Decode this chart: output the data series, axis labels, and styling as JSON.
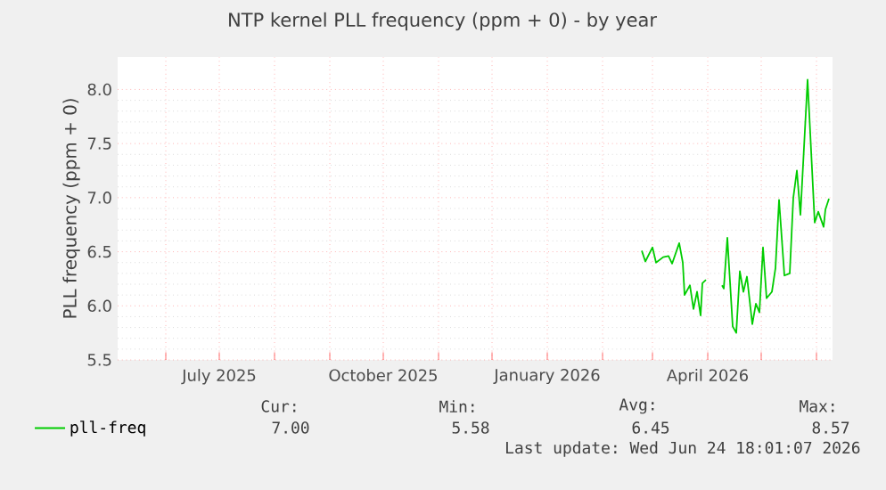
{
  "chart_data": {
    "type": "line",
    "title": "NTP kernel PLL frequency (ppm + 0) - by year",
    "ylabel": "PLL frequency (ppm + 0)",
    "x": [
      "2026-02-23",
      "2026-02-25",
      "2026-03-01",
      "2026-03-03",
      "2026-03-07",
      "2026-03-10",
      "2026-03-12",
      "2026-03-16",
      "2026-03-18",
      "2026-03-19",
      "2026-03-22",
      "2026-03-24",
      "2026-03-26",
      "2026-03-28",
      "2026-03-29",
      "2026-03-31",
      "2026-04-04",
      "2026-04-09",
      "2026-04-10",
      "2026-04-12",
      "2026-04-15",
      "2026-04-17",
      "2026-04-19",
      "2026-04-21",
      "2026-04-23",
      "2026-04-26",
      "2026-04-28",
      "2026-04-30",
      "2026-05-02",
      "2026-05-04",
      "2026-05-07",
      "2026-05-09",
      "2026-05-11",
      "2026-05-14",
      "2026-05-17",
      "2026-05-19",
      "2026-05-21",
      "2026-05-23",
      "2026-05-27",
      "2026-05-31",
      "2026-06-02",
      "2026-06-05",
      "2026-06-06",
      "2026-06-08"
    ],
    "series": [
      {
        "name": "pll-freq",
        "color": "#00cc00",
        "values": [
          6.51,
          6.41,
          6.54,
          6.4,
          6.45,
          6.46,
          6.39,
          6.58,
          6.4,
          6.1,
          6.19,
          5.97,
          6.13,
          5.91,
          6.21,
          6.24,
          null,
          6.19,
          6.16,
          6.63,
          5.81,
          5.75,
          6.32,
          6.13,
          6.27,
          5.83,
          6.02,
          5.94,
          6.54,
          6.07,
          6.13,
          6.35,
          6.98,
          6.28,
          6.3,
          7.0,
          7.25,
          6.84,
          8.09,
          6.77,
          6.87,
          6.73,
          6.89,
          6.99
        ]
      }
    ],
    "xlim": [
      "2025-05-05",
      "2026-06-10"
    ],
    "xticks": [
      {
        "value": "2025-06-01",
        "label": null
      },
      {
        "value": "2025-07-01",
        "label": "July 2025"
      },
      {
        "value": "2025-08-01",
        "label": null
      },
      {
        "value": "2025-09-01",
        "label": null
      },
      {
        "value": "2025-10-01",
        "label": "October 2025"
      },
      {
        "value": "2025-11-01",
        "label": null
      },
      {
        "value": "2025-12-01",
        "label": null
      },
      {
        "value": "2026-01-01",
        "label": "January 2026"
      },
      {
        "value": "2026-02-01",
        "label": null
      },
      {
        "value": "2026-03-01",
        "label": null
      },
      {
        "value": "2026-04-01",
        "label": "April 2026"
      },
      {
        "value": "2026-05-01",
        "label": null
      },
      {
        "value": "2026-06-01",
        "label": null
      }
    ],
    "ylim": [
      5.5,
      8.3
    ],
    "yticks": [
      {
        "value": 5.5,
        "label": "5.5"
      },
      {
        "value": 6.0,
        "label": "6.0"
      },
      {
        "value": 6.5,
        "label": "6.5"
      },
      {
        "value": 7.0,
        "label": "7.0"
      },
      {
        "value": 7.5,
        "label": "7.5"
      },
      {
        "value": 8.0,
        "label": "8.0"
      }
    ],
    "grid": true,
    "legend": "bottom left",
    "marker": "none",
    "line_style": "solid",
    "annotations": [
      "Cur:",
      "7.00",
      "Min:",
      "5.58",
      "Avg:",
      "6.45",
      "Max:",
      "8.57",
      "Last update: Wed Jun 24 18:01:07 2026"
    ]
  }
}
